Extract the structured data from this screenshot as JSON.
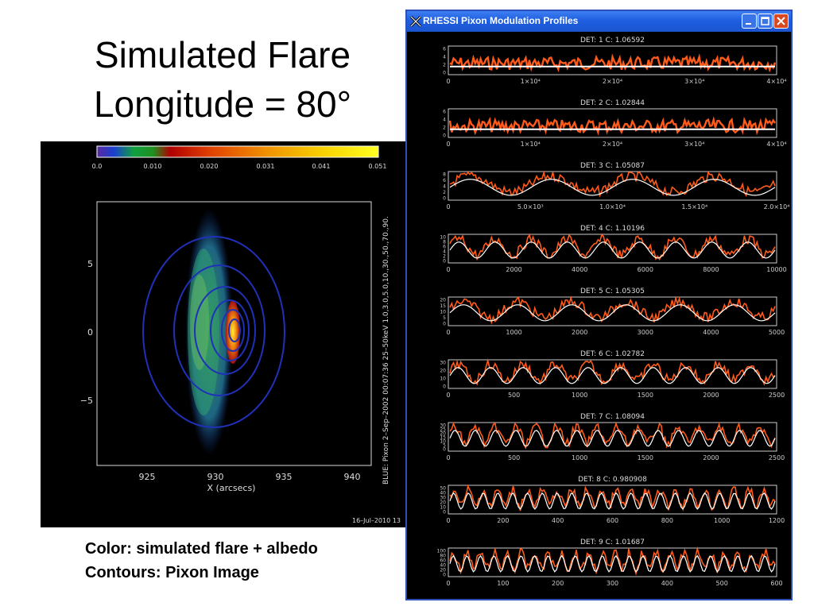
{
  "slide": {
    "title_line1": "Simulated Flare",
    "title_line2": "Longitude = 80°",
    "caption_line1": "Color: simulated flare + albedo",
    "caption_line2": "Contours: Pixon Image"
  },
  "image_panel": {
    "colorbar_ticks": [
      "0.0",
      "0.010",
      "0.020",
      "0.031",
      "0.041",
      "0.051"
    ],
    "y_ticks": [
      "5",
      "0",
      "−5"
    ],
    "x_ticks": [
      "925",
      "930",
      "935",
      "940"
    ],
    "x_label": "X (arcsecs)",
    "side_label": "BLUE: Pixon   2–Sep–2002 00:07:36 25–50keV 1.0,3.0,5.0,10.,30.,50.,70.,90.",
    "date_stamp": "16–Jul–2010 13",
    "colors": {
      "contour": "#2030b8",
      "background": "#000000"
    }
  },
  "window": {
    "title": "RHESSI Pixon Modulation Profiles",
    "icon": "x-window-icon",
    "controls": [
      "minimize-icon",
      "maximize-icon",
      "close-icon"
    ],
    "colors": {
      "titlebar": "#2058e0",
      "profile": "#ff5a1a",
      "model": "#ffffff"
    }
  },
  "profiles": [
    {
      "label": "DET: 1  C: 1.06592",
      "y_ticks": [
        "6",
        "4",
        "2",
        "0"
      ],
      "x_ticks": [
        "0",
        "1×10⁴",
        "2×10⁴",
        "3×10⁴",
        "4×10⁴"
      ]
    },
    {
      "label": "DET: 2  C: 1.02844",
      "y_ticks": [
        "6",
        "4",
        "2",
        "0"
      ],
      "x_ticks": [
        "0",
        "1×10⁴",
        "2×10⁴",
        "3×10⁴",
        "4×10⁴"
      ]
    },
    {
      "label": "DET: 3  C: 1.05087",
      "y_ticks": [
        "8",
        "6",
        "4",
        "2",
        "0"
      ],
      "x_ticks": [
        "0",
        "5.0×10³",
        "1.0×10⁴",
        "1.5×10⁴",
        "2.0×10⁴"
      ]
    },
    {
      "label": "DET: 4  C: 1.10196",
      "y_ticks": [
        "10",
        "8",
        "6",
        "4",
        "2",
        "0"
      ],
      "x_ticks": [
        "0",
        "2000",
        "4000",
        "6000",
        "8000",
        "10000"
      ]
    },
    {
      "label": "DET: 5  C: 1.05305",
      "y_ticks": [
        "20",
        "15",
        "10",
        "5",
        "0"
      ],
      "x_ticks": [
        "0",
        "1000",
        "2000",
        "3000",
        "4000",
        "5000"
      ]
    },
    {
      "label": "DET: 6  C: 1.02782",
      "y_ticks": [
        "30",
        "20",
        "10",
        "0"
      ],
      "x_ticks": [
        "0",
        "500",
        "1000",
        "1500",
        "2000",
        "2500"
      ]
    },
    {
      "label": "DET: 7  C: 1.08094",
      "y_ticks": [
        "30",
        "25",
        "20",
        "15",
        "10",
        "5",
        "0"
      ],
      "x_ticks": [
        "0",
        "500",
        "1000",
        "1500",
        "2000",
        "2500"
      ]
    },
    {
      "label": "DET: 8  C: 0.980908",
      "y_ticks": [
        "50",
        "40",
        "30",
        "20",
        "10",
        "0"
      ],
      "x_ticks": [
        "0",
        "200",
        "400",
        "600",
        "800",
        "1000",
        "1200"
      ]
    },
    {
      "label": "DET: 9  C: 1.01687",
      "y_ticks": [
        "100",
        "80",
        "60",
        "40",
        "20",
        "0"
      ],
      "x_ticks": [
        "0",
        "100",
        "200",
        "300",
        "400",
        "500",
        "600"
      ]
    }
  ]
}
